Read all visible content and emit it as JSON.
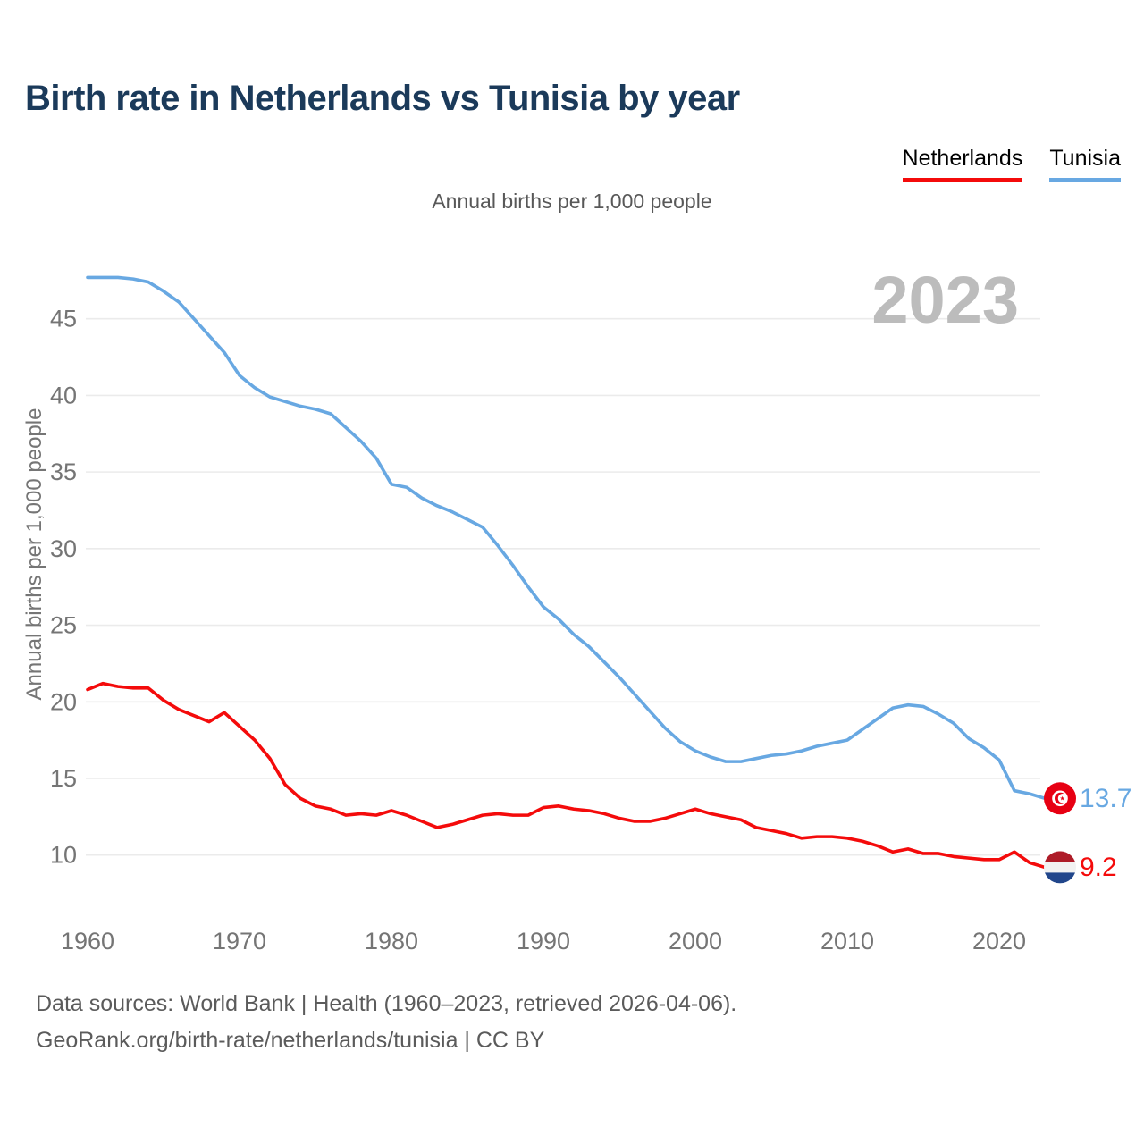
{
  "page": {
    "title": "Birth rate in Netherlands vs Tunisia by year",
    "subtitle": "Annual births per 1,000 people",
    "watermark": "2023",
    "footer_line1": "Data sources: World Bank | Health (1960–2023, retrieved 2026-04-06).",
    "footer_line2": "GeoRank.org/birth-rate/netherlands/tunisia | CC BY"
  },
  "legend": {
    "items": [
      {
        "label": "Netherlands",
        "color": "#f40b0b"
      },
      {
        "label": "Tunisia",
        "color": "#68a8e2"
      }
    ]
  },
  "end_labels": [
    {
      "series": "Tunisia",
      "value": "13.7",
      "color": "#68a8e2",
      "flag": "tunisia-flag"
    },
    {
      "series": "Netherlands",
      "value": "9.2",
      "color": "#f40b0b",
      "flag": "netherlands-flag"
    }
  ],
  "colors": {
    "title_navy": "#1b3a5a",
    "axis_text": "#757575",
    "gridline": "#ebebeb",
    "watermark": "#bcbcbc",
    "netherlands": "#f40b0b",
    "tunisia": "#68a8e2"
  },
  "chart_data": {
    "type": "line",
    "title": "Birth rate in Netherlands vs Tunisia by year",
    "xlabel": "",
    "ylabel": "Annual births per 1,000 people",
    "x_start": 1960,
    "x_end": 2023,
    "x_ticks": [
      1960,
      1970,
      1980,
      1990,
      2000,
      2010,
      2020
    ],
    "y_ticks": [
      10,
      15,
      20,
      25,
      30,
      35,
      40,
      45
    ],
    "ylim": [
      8.8,
      48.6
    ],
    "grid": "horizontal",
    "legend_position": "top-right",
    "series": [
      {
        "name": "Netherlands",
        "color": "#f40b0b",
        "final_value": 9.2,
        "values": [
          20.8,
          21.2,
          21.0,
          20.9,
          20.9,
          20.1,
          19.5,
          19.1,
          18.7,
          19.3,
          18.4,
          17.5,
          16.3,
          14.6,
          13.7,
          13.2,
          13.0,
          12.6,
          12.7,
          12.6,
          12.9,
          12.6,
          12.2,
          11.8,
          12.0,
          12.3,
          12.6,
          12.7,
          12.6,
          12.6,
          13.1,
          13.2,
          13.0,
          12.9,
          12.7,
          12.4,
          12.2,
          12.2,
          12.4,
          12.7,
          13.0,
          12.7,
          12.5,
          12.3,
          11.8,
          11.6,
          11.4,
          11.1,
          11.2,
          11.2,
          11.1,
          10.9,
          10.6,
          10.2,
          10.4,
          10.1,
          10.1,
          9.9,
          9.8,
          9.7,
          9.7,
          10.2,
          9.5,
          9.2
        ]
      },
      {
        "name": "Tunisia",
        "color": "#68a8e2",
        "final_value": 13.7,
        "values": [
          47.7,
          47.7,
          47.7,
          47.6,
          47.4,
          46.8,
          46.1,
          45.0,
          43.9,
          42.8,
          41.3,
          40.5,
          39.9,
          39.6,
          39.3,
          39.1,
          38.8,
          37.9,
          37.0,
          35.9,
          34.2,
          34.0,
          33.3,
          32.8,
          32.4,
          31.9,
          31.4,
          30.2,
          28.9,
          27.5,
          26.2,
          25.4,
          24.4,
          23.6,
          22.6,
          21.6,
          20.5,
          19.4,
          18.3,
          17.4,
          16.8,
          16.4,
          16.1,
          16.1,
          16.3,
          16.5,
          16.6,
          16.8,
          17.1,
          17.3,
          17.5,
          18.2,
          18.9,
          19.6,
          19.8,
          19.7,
          19.2,
          18.6,
          17.6,
          17.0,
          16.2,
          14.2,
          14.0,
          13.7
        ]
      }
    ]
  }
}
